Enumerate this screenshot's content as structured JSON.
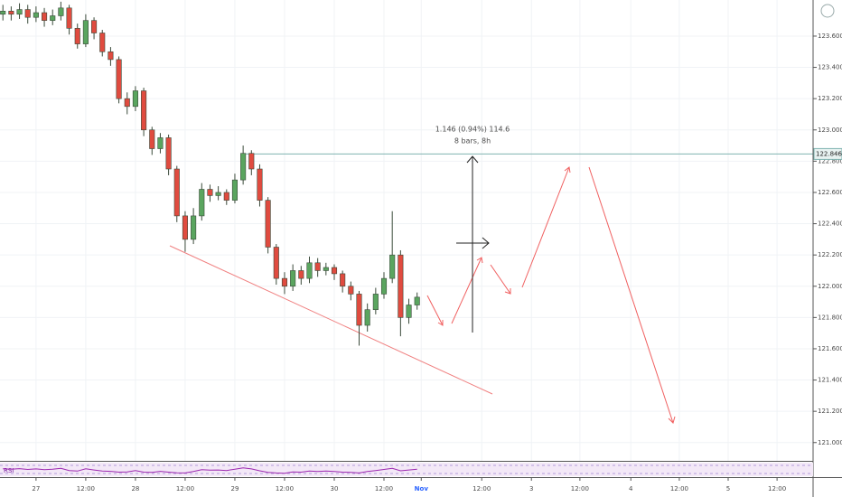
{
  "chart_data": {
    "type": "candlestick",
    "x": [
      -8,
      -6,
      -4,
      -2,
      0,
      2,
      4,
      6,
      8,
      10,
      12,
      14,
      16,
      18,
      20,
      22,
      24,
      26,
      28,
      30,
      32,
      34,
      36,
      38,
      40,
      42,
      44,
      46,
      48,
      50,
      52,
      54,
      56,
      58,
      60,
      62,
      64,
      66,
      68,
      70,
      72,
      74,
      76,
      78,
      80,
      82,
      84,
      86,
      88,
      90,
      92
    ],
    "open": [
      123.74,
      123.76,
      123.74,
      123.77,
      123.72,
      123.75,
      123.7,
      123.73,
      123.78,
      123.65,
      123.55,
      123.7,
      123.62,
      123.5,
      123.45,
      123.2,
      123.15,
      123.25,
      123.0,
      122.88,
      122.95,
      122.75,
      122.45,
      122.3,
      122.45,
      122.62,
      122.58,
      122.6,
      122.55,
      122.68,
      122.85,
      122.75,
      122.55,
      122.25,
      122.05,
      122.0,
      122.1,
      122.05,
      122.15,
      122.1,
      122.12,
      122.08,
      122.0,
      121.95,
      121.75,
      121.85,
      121.95,
      122.05,
      122.2,
      121.8,
      121.88
    ],
    "high": [
      123.8,
      123.79,
      123.81,
      123.8,
      123.79,
      123.78,
      123.77,
      123.82,
      123.8,
      123.68,
      123.74,
      123.72,
      123.64,
      123.53,
      123.47,
      123.24,
      123.28,
      123.27,
      123.02,
      122.98,
      122.97,
      122.77,
      122.48,
      122.5,
      122.66,
      122.65,
      122.64,
      122.62,
      122.72,
      122.9,
      122.87,
      122.78,
      122.57,
      122.27,
      122.09,
      122.14,
      122.13,
      122.19,
      122.18,
      122.15,
      122.14,
      122.1,
      122.03,
      121.97,
      121.89,
      121.99,
      122.09,
      122.48,
      122.23,
      121.92,
      121.96
    ],
    "low": [
      123.7,
      123.7,
      123.71,
      123.68,
      123.69,
      123.66,
      123.67,
      123.7,
      123.61,
      123.52,
      123.53,
      123.58,
      123.47,
      123.41,
      123.17,
      123.1,
      123.12,
      122.96,
      122.84,
      122.85,
      122.71,
      122.41,
      122.22,
      122.27,
      122.42,
      122.54,
      122.55,
      122.52,
      122.53,
      122.65,
      122.71,
      122.51,
      122.21,
      122.01,
      121.95,
      121.97,
      122.01,
      122.02,
      122.06,
      122.07,
      122.04,
      121.96,
      121.91,
      121.62,
      121.71,
      121.82,
      121.92,
      122.02,
      121.68,
      121.76,
      121.85
    ],
    "close": [
      123.76,
      123.74,
      123.77,
      123.72,
      123.75,
      123.7,
      123.73,
      123.78,
      123.65,
      123.55,
      123.7,
      123.62,
      123.5,
      123.45,
      123.2,
      123.15,
      123.25,
      123.0,
      122.88,
      122.95,
      122.75,
      122.45,
      122.3,
      122.45,
      122.62,
      122.58,
      122.6,
      122.55,
      122.68,
      122.85,
      122.75,
      122.55,
      122.25,
      122.05,
      122.0,
      122.1,
      122.05,
      122.15,
      122.1,
      122.12,
      122.08,
      122.0,
      121.95,
      121.75,
      121.85,
      121.95,
      122.05,
      122.2,
      121.8,
      121.88,
      121.93
    ],
    "up_color": "#5aa55f",
    "down_color": "#e04b3f",
    "wick_color": "#3a4a3a",
    "xlim": [
      -8.7,
      187.6
    ],
    "ylim": [
      120.883,
      123.831
    ],
    "xticks": [
      {
        "value": 0,
        "label": "27"
      },
      {
        "value": 12,
        "label": "12:00"
      },
      {
        "value": 24,
        "label": "28"
      },
      {
        "value": 36,
        "label": "12:00"
      },
      {
        "value": 48,
        "label": "29"
      },
      {
        "value": 60,
        "label": "12:00"
      },
      {
        "value": 72,
        "label": "30"
      },
      {
        "value": 84,
        "label": "12:00"
      },
      {
        "value": 93,
        "label": "Nov"
      },
      {
        "value": 107.6,
        "label": "12:00"
      },
      {
        "value": 119.6,
        "label": "3"
      },
      {
        "value": 131.3,
        "label": "12:00"
      },
      {
        "value": 143.6,
        "label": "4"
      },
      {
        "value": 155.3,
        "label": "12:00"
      },
      {
        "value": 167.1,
        "label": "5"
      },
      {
        "value": 178.9,
        "label": "12:00"
      }
    ],
    "yticks": [
      {
        "value": 121,
        "label": "121.000"
      },
      {
        "value": 121.2,
        "label": "121.200"
      },
      {
        "value": 121.4,
        "label": "121.400"
      },
      {
        "value": 121.6,
        "label": "121.600"
      },
      {
        "value": 121.8,
        "label": "121.800"
      },
      {
        "value": 122,
        "label": "122.000"
      },
      {
        "value": 122.2,
        "label": "122.200"
      },
      {
        "value": 122.4,
        "label": "122.400"
      },
      {
        "value": 122.6,
        "label": "122.600"
      },
      {
        "value": 122.8,
        "label": "122.800"
      },
      {
        "value": 123,
        "label": "123.000"
      },
      {
        "value": 123.2,
        "label": "123.200"
      },
      {
        "value": 123.4,
        "label": "123.400"
      },
      {
        "value": 123.6,
        "label": "123.600"
      }
    ],
    "level": {
      "value": 122.846,
      "label": "122.846"
    },
    "level_color": "#7fb3b0",
    "measure_label": [
      "1.146 (0.94%) 114.6",
      "8 bars, 8h"
    ],
    "rsi": {
      "name": "RSI",
      "color": "#9c27b0",
      "ylim": [
        0,
        100
      ],
      "values": [
        55,
        52,
        56,
        50,
        54,
        48,
        52,
        58,
        42,
        38,
        55,
        46,
        38,
        36,
        30,
        32,
        42,
        30,
        28,
        36,
        30,
        25,
        24,
        35,
        48,
        45,
        46,
        42,
        52,
        62,
        54,
        40,
        28,
        24,
        22,
        32,
        30,
        38,
        35,
        38,
        35,
        30,
        28,
        24,
        35,
        42,
        50,
        58,
        40,
        46,
        52
      ]
    },
    "grid": true
  }
}
